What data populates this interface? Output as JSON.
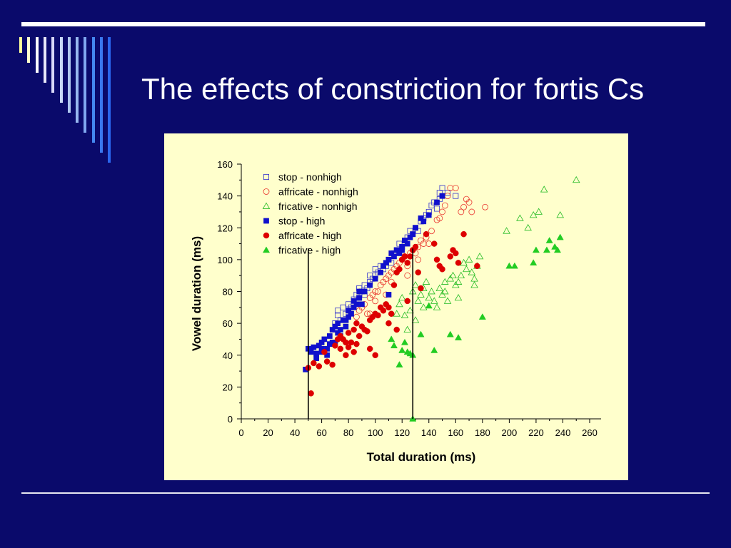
{
  "slide": {
    "title": "The effects of constriction for fortis Cs",
    "background": "#0a0a6b",
    "chart_background": "#ffffcc"
  },
  "chart_data": {
    "type": "scatter",
    "xlabel": "Total duration (ms)",
    "ylabel": "Vowel duration (ms)",
    "xlim": [
      0,
      260
    ],
    "ylim": [
      0,
      160
    ],
    "xticks": [
      0,
      20,
      40,
      60,
      80,
      100,
      120,
      140,
      160,
      180,
      200,
      220,
      240,
      260
    ],
    "yticks": [
      0,
      20,
      40,
      60,
      80,
      100,
      120,
      140,
      160
    ],
    "legend_position": "top-left",
    "reference_lines": [
      {
        "x": 50,
        "y_from": 0,
        "y_to": 107
      },
      {
        "x": 128,
        "y_from": 0,
        "y_to": 107
      }
    ],
    "series": [
      {
        "name": "stop - nonhigh",
        "marker": "square-open",
        "color": "#3333cc",
        "points": [
          [
            72,
            65
          ],
          [
            74,
            62
          ],
          [
            76,
            70
          ],
          [
            78,
            66
          ],
          [
            80,
            72
          ],
          [
            82,
            70
          ],
          [
            84,
            75
          ],
          [
            86,
            78
          ],
          [
            88,
            76
          ],
          [
            88,
            82
          ],
          [
            90,
            80
          ],
          [
            92,
            84
          ],
          [
            94,
            82
          ],
          [
            96,
            86
          ],
          [
            98,
            88
          ],
          [
            100,
            90
          ],
          [
            100,
            94
          ],
          [
            102,
            92
          ],
          [
            104,
            96
          ],
          [
            106,
            94
          ],
          [
            108,
            96
          ],
          [
            110,
            100
          ],
          [
            112,
            98
          ],
          [
            114,
            104
          ],
          [
            116,
            106
          ],
          [
            118,
            110
          ],
          [
            120,
            108
          ],
          [
            122,
            112
          ],
          [
            124,
            114
          ],
          [
            126,
            118
          ],
          [
            128,
            116
          ],
          [
            130,
            120
          ],
          [
            132,
            118
          ],
          [
            134,
            124
          ],
          [
            136,
            126
          ],
          [
            138,
            128
          ],
          [
            140,
            130
          ],
          [
            142,
            134
          ],
          [
            144,
            136
          ],
          [
            146,
            132
          ],
          [
            148,
            138
          ],
          [
            148,
            142
          ],
          [
            150,
            140
          ],
          [
            150,
            145
          ],
          [
            154,
            142
          ],
          [
            160,
            140
          ],
          [
            70,
            60
          ],
          [
            72,
            68
          ],
          [
            78,
            62
          ],
          [
            80,
            68
          ],
          [
            92,
            78
          ],
          [
            96,
            90
          ]
        ]
      },
      {
        "name": "affricate - nonhigh",
        "marker": "circle-open",
        "color": "#e8332a",
        "points": [
          [
            90,
            70
          ],
          [
            92,
            72
          ],
          [
            94,
            66
          ],
          [
            96,
            76
          ],
          [
            98,
            78
          ],
          [
            100,
            74
          ],
          [
            102,
            80
          ],
          [
            104,
            84
          ],
          [
            106,
            86
          ],
          [
            108,
            88
          ],
          [
            110,
            90
          ],
          [
            112,
            86
          ],
          [
            112,
            92
          ],
          [
            114,
            94
          ],
          [
            116,
            96
          ],
          [
            118,
            98
          ],
          [
            120,
            100
          ],
          [
            122,
            102
          ],
          [
            124,
            96
          ],
          [
            126,
            104
          ],
          [
            128,
            106
          ],
          [
            130,
            104
          ],
          [
            132,
            108
          ],
          [
            134,
            112
          ],
          [
            136,
            110
          ],
          [
            138,
            114
          ],
          [
            140,
            110
          ],
          [
            142,
            118
          ],
          [
            146,
            125
          ],
          [
            148,
            126
          ],
          [
            150,
            130
          ],
          [
            152,
            134
          ],
          [
            154,
            140
          ],
          [
            156,
            145
          ],
          [
            160,
            145
          ],
          [
            164,
            130
          ],
          [
            166,
            133
          ],
          [
            168,
            138
          ],
          [
            170,
            136
          ],
          [
            172,
            130
          ],
          [
            182,
            133
          ],
          [
            86,
            64
          ],
          [
            88,
            68
          ],
          [
            96,
            66
          ],
          [
            100,
            80
          ],
          [
            108,
            78
          ],
          [
            124,
            90
          ],
          [
            132,
            100
          ]
        ]
      },
      {
        "name": "fricative - nonhigh",
        "marker": "triangle-open",
        "color": "#22bb22",
        "points": [
          [
            116,
            66
          ],
          [
            118,
            72
          ],
          [
            120,
            76
          ],
          [
            122,
            65
          ],
          [
            124,
            56
          ],
          [
            126,
            68
          ],
          [
            128,
            80
          ],
          [
            130,
            84
          ],
          [
            132,
            74
          ],
          [
            134,
            78
          ],
          [
            136,
            82
          ],
          [
            138,
            86
          ],
          [
            140,
            76
          ],
          [
            142,
            80
          ],
          [
            144,
            74
          ],
          [
            146,
            70
          ],
          [
            148,
            82
          ],
          [
            150,
            78
          ],
          [
            152,
            86
          ],
          [
            154,
            74
          ],
          [
            156,
            88
          ],
          [
            158,
            90
          ],
          [
            160,
            84
          ],
          [
            162,
            86
          ],
          [
            164,
            90
          ],
          [
            166,
            98
          ],
          [
            168,
            94
          ],
          [
            170,
            100
          ],
          [
            172,
            92
          ],
          [
            174,
            88
          ],
          [
            176,
            96
          ],
          [
            178,
            102
          ],
          [
            198,
            118
          ],
          [
            208,
            126
          ],
          [
            214,
            120
          ],
          [
            218,
            128
          ],
          [
            222,
            130
          ],
          [
            226,
            144
          ],
          [
            238,
            128
          ],
          [
            250,
            150
          ],
          [
            130,
            62
          ],
          [
            136,
            70
          ],
          [
            152,
            80
          ],
          [
            162,
            76
          ],
          [
            174,
            84
          ]
        ]
      },
      {
        "name": "stop - high",
        "marker": "square-filled",
        "color": "#1010cc",
        "points": [
          [
            48,
            31
          ],
          [
            50,
            44
          ],
          [
            52,
            42
          ],
          [
            54,
            45
          ],
          [
            56,
            41
          ],
          [
            58,
            46
          ],
          [
            60,
            48
          ],
          [
            60,
            44
          ],
          [
            62,
            50
          ],
          [
            64,
            44
          ],
          [
            66,
            52
          ],
          [
            68,
            48
          ],
          [
            68,
            56
          ],
          [
            70,
            58
          ],
          [
            72,
            54
          ],
          [
            72,
            60
          ],
          [
            74,
            56
          ],
          [
            76,
            62
          ],
          [
            78,
            58
          ],
          [
            80,
            64
          ],
          [
            80,
            68
          ],
          [
            82,
            66
          ],
          [
            84,
            70
          ],
          [
            84,
            74
          ],
          [
            86,
            72
          ],
          [
            88,
            76
          ],
          [
            90,
            72
          ],
          [
            92,
            80
          ],
          [
            96,
            84
          ],
          [
            100,
            88
          ],
          [
            104,
            92
          ],
          [
            106,
            96
          ],
          [
            108,
            98
          ],
          [
            110,
            100
          ],
          [
            112,
            104
          ],
          [
            114,
            102
          ],
          [
            116,
            106
          ],
          [
            118,
            104
          ],
          [
            120,
            108
          ],
          [
            122,
            112
          ],
          [
            124,
            110
          ],
          [
            126,
            114
          ],
          [
            128,
            116
          ],
          [
            130,
            120
          ],
          [
            134,
            126
          ],
          [
            136,
            124
          ],
          [
            140,
            128
          ],
          [
            146,
            136
          ],
          [
            150,
            140
          ],
          [
            56,
            38
          ],
          [
            60,
            42
          ],
          [
            64,
            40
          ],
          [
            66,
            47
          ],
          [
            70,
            48
          ],
          [
            74,
            52
          ],
          [
            78,
            62
          ],
          [
            82,
            66
          ],
          [
            88,
            80
          ],
          [
            110,
            78
          ],
          [
            120,
            106
          ]
        ]
      },
      {
        "name": "affricate - high",
        "marker": "circle-filled",
        "color": "#dd0000",
        "points": [
          [
            52,
            16
          ],
          [
            50,
            32
          ],
          [
            54,
            35
          ],
          [
            58,
            33
          ],
          [
            62,
            42
          ],
          [
            64,
            36
          ],
          [
            68,
            34
          ],
          [
            70,
            46
          ],
          [
            72,
            50
          ],
          [
            74,
            52
          ],
          [
            76,
            50
          ],
          [
            78,
            48
          ],
          [
            80,
            54
          ],
          [
            82,
            48
          ],
          [
            84,
            56
          ],
          [
            86,
            60
          ],
          [
            88,
            52
          ],
          [
            90,
            58
          ],
          [
            92,
            56
          ],
          [
            94,
            55
          ],
          [
            96,
            62
          ],
          [
            98,
            64
          ],
          [
            100,
            66
          ],
          [
            102,
            65
          ],
          [
            104,
            70
          ],
          [
            106,
            68
          ],
          [
            108,
            72
          ],
          [
            110,
            70
          ],
          [
            112,
            66
          ],
          [
            114,
            84
          ],
          [
            116,
            92
          ],
          [
            118,
            94
          ],
          [
            120,
            100
          ],
          [
            122,
            102
          ],
          [
            124,
            98
          ],
          [
            126,
            102
          ],
          [
            128,
            106
          ],
          [
            130,
            108
          ],
          [
            132,
            92
          ],
          [
            134,
            82
          ],
          [
            138,
            116
          ],
          [
            144,
            110
          ],
          [
            146,
            100
          ],
          [
            148,
            96
          ],
          [
            150,
            94
          ],
          [
            156,
            102
          ],
          [
            158,
            106
          ],
          [
            160,
            104
          ],
          [
            162,
            98
          ],
          [
            166,
            116
          ],
          [
            176,
            96
          ],
          [
            74,
            44
          ],
          [
            78,
            40
          ],
          [
            80,
            45
          ],
          [
            84,
            42
          ],
          [
            86,
            47
          ],
          [
            96,
            44
          ],
          [
            100,
            40
          ],
          [
            110,
            60
          ],
          [
            116,
            56
          ],
          [
            124,
            74
          ]
        ]
      },
      {
        "name": "fricative - high",
        "marker": "triangle-filled",
        "color": "#22cc22",
        "points": [
          [
            112,
            50
          ],
          [
            114,
            46
          ],
          [
            118,
            34
          ],
          [
            120,
            43
          ],
          [
            122,
            48
          ],
          [
            124,
            42
          ],
          [
            126,
            41
          ],
          [
            128,
            40
          ],
          [
            128,
            0
          ],
          [
            134,
            53
          ],
          [
            140,
            71
          ],
          [
            144,
            43
          ],
          [
            156,
            53
          ],
          [
            162,
            51
          ],
          [
            180,
            64
          ],
          [
            200,
            96
          ],
          [
            204,
            96
          ],
          [
            218,
            98
          ],
          [
            220,
            106
          ],
          [
            228,
            106
          ],
          [
            230,
            112
          ],
          [
            234,
            108
          ],
          [
            236,
            106
          ],
          [
            238,
            114
          ]
        ]
      }
    ]
  }
}
